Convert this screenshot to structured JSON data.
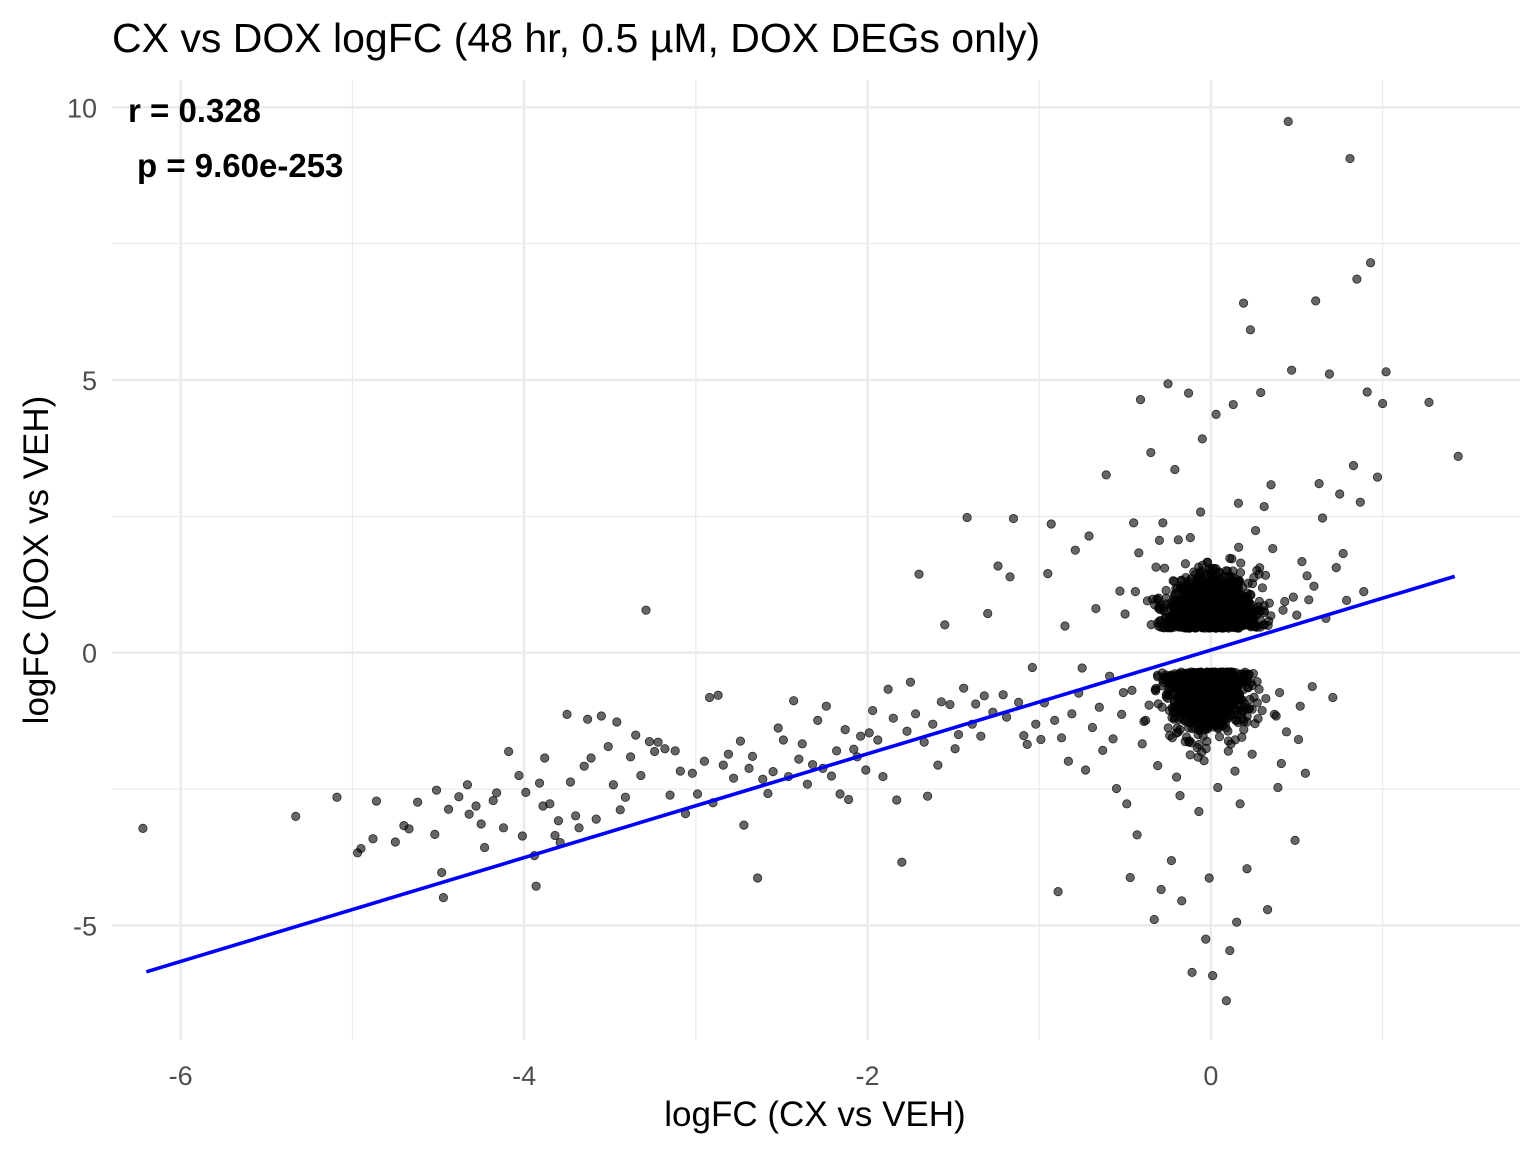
{
  "chart_data": {
    "type": "scatter",
    "title": "CX vs DOX logFC (48 hr, 0.5 µM, DOX DEGs only)",
    "xlabel": "logFC (CX vs VEH)",
    "ylabel": "logFC (DOX vs VEH)",
    "xlim": [
      -6.4,
      1.8
    ],
    "ylim": [
      -7.1,
      10.5
    ],
    "x_ticks": [
      -6,
      -4,
      -2,
      0
    ],
    "x_tick_labels": [
      "-6",
      "-4",
      "-2",
      "0"
    ],
    "y_ticks": [
      -5,
      0,
      5,
      10
    ],
    "y_tick_labels": [
      "-5",
      "0",
      "5",
      "10"
    ],
    "grid": true,
    "point_color": "#000000",
    "point_opacity": 0.6,
    "line_color": "#0000ff",
    "grid_color": "#ebebeb",
    "annotations": {
      "r": "r = 0.328",
      "p": "p = 9.60e-253"
    },
    "fit_line": {
      "x": [
        -6.2,
        1.42
      ],
      "y": [
        -5.85,
        1.4
      ]
    },
    "points": [
      [
        -6.22,
        -3.22
      ],
      [
        -5.33,
        -3.0
      ],
      [
        -5.09,
        -2.65
      ],
      [
        -4.97,
        -3.67
      ],
      [
        -4.95,
        -3.59
      ],
      [
        -4.88,
        -3.41
      ],
      [
        -4.86,
        -2.72
      ],
      [
        -4.75,
        -3.47
      ],
      [
        -4.7,
        -3.17
      ],
      [
        -4.67,
        -3.23
      ],
      [
        -4.62,
        -2.74
      ],
      [
        -4.52,
        -3.33
      ],
      [
        -4.51,
        -2.52
      ],
      [
        -4.48,
        -4.03
      ],
      [
        -4.47,
        -4.49
      ],
      [
        -4.44,
        -2.87
      ],
      [
        -4.38,
        -2.64
      ],
      [
        -4.33,
        -2.42
      ],
      [
        -4.32,
        -2.96
      ],
      [
        -4.28,
        -2.81
      ],
      [
        -4.25,
        -3.14
      ],
      [
        -4.23,
        -3.57
      ],
      [
        -4.18,
        -2.71
      ],
      [
        -4.16,
        -2.57
      ],
      [
        -4.12,
        -3.21
      ],
      [
        -4.09,
        -1.81
      ],
      [
        -4.03,
        -2.25
      ],
      [
        -4.01,
        -3.36
      ],
      [
        -3.99,
        -2.56
      ],
      [
        -3.94,
        -3.72
      ],
      [
        -3.93,
        -4.28
      ],
      [
        -3.91,
        -2.39
      ],
      [
        -3.89,
        -2.81
      ],
      [
        -3.88,
        -1.93
      ],
      [
        -3.85,
        -2.77
      ],
      [
        -3.82,
        -3.35
      ],
      [
        -3.8,
        -3.08
      ],
      [
        -3.79,
        -3.48
      ],
      [
        -3.75,
        -1.13
      ],
      [
        -3.73,
        -2.37
      ],
      [
        -3.7,
        -2.99
      ],
      [
        -3.68,
        -3.21
      ],
      [
        -3.65,
        -2.08
      ],
      [
        -3.63,
        -1.22
      ],
      [
        -3.61,
        -1.93
      ],
      [
        -3.58,
        -3.05
      ],
      [
        -3.55,
        -1.16
      ],
      [
        -3.51,
        -1.72
      ],
      [
        -3.48,
        -2.42
      ],
      [
        -3.46,
        -1.27
      ],
      [
        -3.44,
        -2.88
      ],
      [
        -3.41,
        -2.65
      ],
      [
        -3.38,
        -1.91
      ],
      [
        -3.35,
        -1.51
      ],
      [
        -3.32,
        -2.25
      ],
      [
        -3.29,
        0.78
      ],
      [
        -3.27,
        -1.63
      ],
      [
        -3.24,
        -1.81
      ],
      [
        -3.22,
        -1.64
      ],
      [
        -3.18,
        -1.76
      ],
      [
        -3.15,
        -2.61
      ],
      [
        -3.12,
        -1.8
      ],
      [
        -3.09,
        -2.17
      ],
      [
        -3.06,
        -2.95
      ],
      [
        -3.02,
        -2.21
      ],
      [
        -2.99,
        -2.59
      ],
      [
        -2.95,
        -1.99
      ],
      [
        -2.92,
        -0.82
      ],
      [
        -2.9,
        -2.75
      ],
      [
        -2.87,
        -0.78
      ],
      [
        -2.84,
        -2.06
      ],
      [
        -2.81,
        -1.86
      ],
      [
        -2.78,
        -2.3
      ],
      [
        -2.74,
        -1.62
      ],
      [
        -2.72,
        -3.16
      ],
      [
        -2.69,
        -2.12
      ],
      [
        -2.67,
        -1.9
      ],
      [
        -2.64,
        -4.13
      ],
      [
        -2.61,
        -2.32
      ],
      [
        -2.58,
        -2.58
      ],
      [
        -2.55,
        -2.18
      ],
      [
        -2.52,
        -1.38
      ],
      [
        -2.49,
        -1.6
      ],
      [
        -2.46,
        -2.27
      ],
      [
        -2.43,
        -0.88
      ],
      [
        -2.4,
        -1.95
      ],
      [
        -2.38,
        -1.67
      ],
      [
        -2.35,
        -2.41
      ],
      [
        -2.32,
        -2.05
      ],
      [
        -2.29,
        -1.24
      ],
      [
        -2.26,
        -2.12
      ],
      [
        -2.24,
        -0.98
      ],
      [
        -2.21,
        -2.26
      ],
      [
        -2.18,
        -1.8
      ],
      [
        -2.16,
        -2.59
      ],
      [
        -2.13,
        -1.41
      ],
      [
        -2.11,
        -2.69
      ],
      [
        -2.08,
        -1.77
      ],
      [
        -2.06,
        -1.91
      ],
      [
        -2.04,
        -1.53
      ],
      [
        -2.01,
        -2.15
      ],
      [
        -1.99,
        -1.47
      ],
      [
        -1.97,
        -1.06
      ],
      [
        -1.94,
        -1.6
      ],
      [
        -1.91,
        -2.27
      ],
      [
        -1.88,
        -0.67
      ],
      [
        -1.85,
        -1.2
      ],
      [
        -1.83,
        -2.7
      ],
      [
        -1.8,
        -3.84
      ],
      [
        -1.77,
        -1.44
      ],
      [
        -1.75,
        -0.54
      ],
      [
        -1.72,
        -1.12
      ],
      [
        -1.7,
        1.44
      ],
      [
        -1.67,
        -1.64
      ],
      [
        -1.65,
        -2.63
      ],
      [
        -1.62,
        -1.31
      ],
      [
        -1.59,
        -2.06
      ],
      [
        -1.57,
        -0.9
      ],
      [
        -1.55,
        0.51
      ],
      [
        -1.52,
        -0.95
      ],
      [
        -1.49,
        -1.76
      ],
      [
        -1.47,
        -1.5
      ],
      [
        -1.44,
        -0.65
      ],
      [
        -1.42,
        2.48
      ],
      [
        -1.39,
        -1.31
      ],
      [
        -1.37,
        -0.94
      ],
      [
        -1.34,
        -1.53
      ],
      [
        -1.32,
        -0.79
      ],
      [
        -1.3,
        0.72
      ],
      [
        -1.27,
        -1.09
      ],
      [
        -1.24,
        1.59
      ],
      [
        -1.21,
        -0.77
      ],
      [
        -1.19,
        -1.18
      ],
      [
        -1.17,
        1.39
      ],
      [
        -1.15,
        2.46
      ],
      [
        -1.12,
        -0.91
      ],
      [
        -1.09,
        -1.52
      ],
      [
        -1.07,
        -1.68
      ],
      [
        -1.04,
        -0.27
      ],
      [
        -1.02,
        -1.31
      ],
      [
        -0.99,
        -1.59
      ],
      [
        -0.97,
        -0.92
      ],
      [
        -0.95,
        1.45
      ],
      [
        -0.93,
        2.36
      ],
      [
        -0.91,
        -1.24
      ],
      [
        -0.89,
        -4.38
      ],
      [
        -0.87,
        -1.56
      ],
      [
        -0.85,
        0.49
      ],
      [
        -0.83,
        -1.99
      ],
      [
        -0.81,
        -1.12
      ],
      [
        -0.79,
        1.88
      ],
      [
        -0.77,
        -0.74
      ],
      [
        -0.75,
        -0.28
      ],
      [
        -0.73,
        -2.15
      ],
      [
        -0.71,
        2.14
      ],
      [
        -0.69,
        -1.37
      ],
      [
        -0.67,
        0.81
      ],
      [
        -0.65,
        -1.0
      ],
      [
        -0.63,
        -1.79
      ],
      [
        -0.61,
        3.26
      ],
      [
        -0.59,
        -0.43
      ],
      [
        -0.57,
        -1.58
      ],
      [
        -0.55,
        -2.49
      ],
      [
        -0.53,
        1.13
      ],
      [
        -0.51,
        -0.73
      ],
      [
        -0.49,
        -2.77
      ],
      [
        -0.47,
        -4.12
      ],
      [
        -0.45,
        2.38
      ],
      [
        -0.43,
        -3.34
      ],
      [
        -0.41,
        4.64
      ],
      [
        -0.39,
        -1.26
      ],
      [
        -0.37,
        0.95
      ],
      [
        -0.35,
        3.67
      ],
      [
        -0.33,
        -4.89
      ],
      [
        -0.31,
        -2.07
      ],
      [
        -0.29,
        -4.34
      ],
      [
        -0.27,
        1.55
      ],
      [
        -0.25,
        4.93
      ],
      [
        -0.23,
        -3.81
      ],
      [
        -0.21,
        3.36
      ],
      [
        -0.19,
        2.07
      ],
      [
        -0.17,
        -4.55
      ],
      [
        -0.15,
        -1.63
      ],
      [
        -0.13,
        4.76
      ],
      [
        -0.11,
        -5.86
      ],
      [
        -0.09,
        0.67
      ],
      [
        -0.07,
        -2.91
      ],
      [
        -0.05,
        3.92
      ],
      [
        -0.03,
        -5.25
      ],
      [
        -0.01,
        -4.13
      ],
      [
        0.01,
        -5.92
      ],
      [
        0.03,
        4.37
      ],
      [
        0.05,
        -1.54
      ],
      [
        0.07,
        0.73
      ],
      [
        0.09,
        -6.38
      ],
      [
        0.11,
        -5.46
      ],
      [
        0.13,
        4.55
      ],
      [
        0.15,
        -4.94
      ],
      [
        0.17,
        -2.77
      ],
      [
        0.19,
        6.41
      ],
      [
        0.21,
        -3.96
      ],
      [
        0.23,
        5.92
      ],
      [
        0.25,
        1.38
      ],
      [
        0.27,
        -0.92
      ],
      [
        0.29,
        4.77
      ],
      [
        0.31,
        2.68
      ],
      [
        0.33,
        -4.71
      ],
      [
        0.35,
        3.08
      ],
      [
        0.37,
        -1.13
      ],
      [
        0.39,
        -2.47
      ],
      [
        0.41,
        -2.03
      ],
      [
        0.43,
        0.94
      ],
      [
        0.45,
        9.74
      ],
      [
        0.47,
        5.18
      ],
      [
        0.49,
        -3.44
      ],
      [
        0.51,
        -1.59
      ],
      [
        0.53,
        1.67
      ],
      [
        0.55,
        -2.21
      ],
      [
        0.57,
        0.97
      ],
      [
        0.59,
        -0.62
      ],
      [
        0.61,
        6.45
      ],
      [
        0.63,
        3.1
      ],
      [
        0.65,
        2.47
      ],
      [
        0.67,
        0.63
      ],
      [
        0.69,
        5.11
      ],
      [
        0.71,
        -0.82
      ],
      [
        0.73,
        1.56
      ],
      [
        0.75,
        2.91
      ],
      [
        0.77,
        1.82
      ],
      [
        0.79,
        0.96
      ],
      [
        0.81,
        9.06
      ],
      [
        0.83,
        3.43
      ],
      [
        0.85,
        6.85
      ],
      [
        0.87,
        2.76
      ],
      [
        0.89,
        1.12
      ],
      [
        0.91,
        4.78
      ],
      [
        0.93,
        7.15
      ],
      [
        0.97,
        3.22
      ],
      [
        1.0,
        4.57
      ],
      [
        1.02,
        5.15
      ],
      [
        1.27,
        4.59
      ],
      [
        1.44,
        3.6
      ],
      [
        0.13,
        1.08
      ],
      [
        0.21,
        -1.27
      ],
      [
        -0.14,
        0.92
      ],
      [
        0.05,
        -0.87
      ],
      [
        -0.22,
        1.32
      ],
      [
        0.18,
        -1.55
      ],
      [
        -0.3,
        0.84
      ],
      [
        0.28,
        1.44
      ],
      [
        -0.08,
        -1.12
      ],
      [
        0.34,
        0.91
      ],
      [
        -0.36,
        -0.96
      ],
      [
        0.11,
        1.73
      ],
      [
        -0.18,
        -1.41
      ],
      [
        0.4,
        -0.73
      ],
      [
        -0.44,
        1.12
      ],
      [
        0.24,
        -1.86
      ],
      [
        0.02,
        1.27
      ],
      [
        -0.26,
        -0.81
      ],
      [
        0.48,
        1.02
      ],
      [
        -0.12,
        2.11
      ],
      [
        0.15,
        -0.59
      ],
      [
        -0.4,
        -1.67
      ],
      [
        0.36,
        1.91
      ],
      [
        -0.04,
        -1.98
      ],
      [
        0.09,
        0.56
      ],
      [
        -0.32,
        1.57
      ],
      [
        0.52,
        -0.98
      ],
      [
        -0.2,
        -2.28
      ],
      [
        0.3,
        1.19
      ],
      [
        -0.5,
        0.71
      ],
      [
        0.07,
        -1.33
      ],
      [
        -0.1,
        1.48
      ],
      [
        0.44,
        -1.45
      ],
      [
        -0.28,
        2.38
      ],
      [
        0.19,
        0.82
      ],
      [
        -0.38,
        -1.24
      ],
      [
        0.56,
        1.41
      ],
      [
        0.0,
        -0.71
      ],
      [
        -0.16,
        0.73
      ],
      [
        0.26,
        2.24
      ],
      [
        -0.46,
        -0.69
      ],
      [
        0.38,
        -1.16
      ],
      [
        -0.06,
        2.58
      ],
      [
        0.14,
        -2.17
      ],
      [
        -0.34,
        0.98
      ],
      [
        0.5,
        0.69
      ],
      [
        -0.24,
        -1.52
      ],
      [
        0.32,
        -0.84
      ],
      [
        -0.02,
        1.66
      ],
      [
        0.22,
        -1.03
      ],
      [
        -0.42,
        1.83
      ],
      [
        0.04,
        -2.47
      ],
      [
        0.6,
        1.22
      ],
      [
        -0.14,
        -0.92
      ],
      [
        0.16,
        2.74
      ],
      [
        -0.52,
        -1.13
      ],
      [
        0.42,
        0.78
      ],
      [
        -0.08,
        -1.74
      ],
      [
        0.28,
        -0.67
      ],
      [
        -0.3,
        2.06
      ],
      [
        0.12,
        1.34
      ],
      [
        -0.18,
        -2.62
      ]
    ]
  }
}
